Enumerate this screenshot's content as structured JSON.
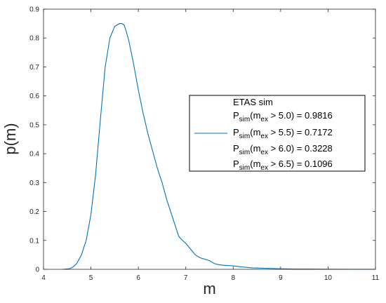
{
  "chart_data": {
    "type": "line",
    "xlabel": "m",
    "ylabel": "p(m)",
    "xlim": [
      4,
      11
    ],
    "ylim": [
      0,
      0.9
    ],
    "xticks": [
      "4",
      "5",
      "6",
      "7",
      "8",
      "9",
      "10",
      "11"
    ],
    "yticks": [
      "0",
      "0.1",
      "0.2",
      "0.3",
      "0.4",
      "0.5",
      "0.6",
      "0.7",
      "0.8",
      "0.9"
    ],
    "grid": false,
    "legend_placement": "right",
    "colors": {
      "series": "#0072BD",
      "axes": "#262626"
    },
    "legend": {
      "title": "ETAS sim",
      "entries": [
        {
          "base": "P",
          "sub1": "sim",
          "mid": "(m",
          "sub2": "ex",
          "rest": " > 5.0) = 0.9816"
        },
        {
          "base": "P",
          "sub1": "sim",
          "mid": "(m",
          "sub2": "ex",
          "rest": " > 5.5) = 0.7172"
        },
        {
          "base": "P",
          "sub1": "sim",
          "mid": "(m",
          "sub2": "ex",
          "rest": " > 6.0) = 0.3228"
        },
        {
          "base": "P",
          "sub1": "sim",
          "mid": "(m",
          "sub2": "ex",
          "rest": " > 6.5) = 0.1096"
        }
      ]
    },
    "series": [
      {
        "x": [
          4.4,
          4.55,
          4.62,
          4.7,
          4.8,
          4.9,
          5.0,
          5.1,
          5.2,
          5.3,
          5.4,
          5.5,
          5.6,
          5.65,
          5.7,
          5.75,
          5.8,
          5.9,
          6.0,
          6.1,
          6.2,
          6.3,
          6.4,
          6.5,
          6.6,
          6.7,
          6.8,
          6.85,
          6.9,
          7.0,
          7.1,
          7.2,
          7.3,
          7.4,
          7.5,
          7.6,
          7.7,
          7.8,
          8.0,
          8.2,
          8.4,
          8.6,
          8.8,
          9.0,
          9.3,
          9.6,
          10.0,
          10.5,
          11.0
        ],
        "y": [
          0.0,
          0.002,
          0.008,
          0.02,
          0.05,
          0.1,
          0.19,
          0.33,
          0.52,
          0.7,
          0.8,
          0.84,
          0.85,
          0.85,
          0.845,
          0.82,
          0.79,
          0.71,
          0.62,
          0.54,
          0.47,
          0.41,
          0.35,
          0.3,
          0.24,
          0.19,
          0.14,
          0.115,
          0.105,
          0.09,
          0.07,
          0.05,
          0.04,
          0.035,
          0.03,
          0.02,
          0.016,
          0.014,
          0.012,
          0.008,
          0.005,
          0.004,
          0.003,
          0.002,
          0.001,
          0.001,
          0.0005,
          0.0003,
          0.0002
        ]
      }
    ]
  }
}
